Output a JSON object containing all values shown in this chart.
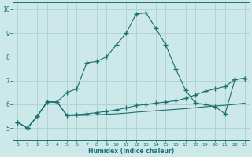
{
  "title": "",
  "xlabel": "Humidex (Indice chaleur)",
  "bg_color": "#cce8e8",
  "grid_color": "#b0d4d4",
  "line_color": "#1a7070",
  "xlim": [
    -0.5,
    23.5
  ],
  "ylim": [
    4.5,
    10.3
  ],
  "xticks": [
    0,
    1,
    2,
    3,
    4,
    5,
    6,
    7,
    8,
    9,
    10,
    11,
    12,
    13,
    14,
    15,
    16,
    17,
    18,
    19,
    20,
    21,
    22,
    23
  ],
  "yticks": [
    5,
    6,
    7,
    8,
    9,
    10
  ],
  "line1_x": [
    0,
    1,
    2,
    3,
    4,
    5,
    6,
    7,
    8,
    9,
    10,
    11,
    12,
    13,
    14,
    15,
    16,
    17,
    18,
    19,
    20,
    21,
    22,
    23
  ],
  "line1_y": [
    5.25,
    5.0,
    5.5,
    6.1,
    6.1,
    6.5,
    6.65,
    7.75,
    7.8,
    8.0,
    8.5,
    9.0,
    9.8,
    9.85,
    9.2,
    8.5,
    7.5,
    6.6,
    6.05,
    6.0,
    5.9,
    5.6,
    7.05,
    7.1
  ],
  "line2_x": [
    0,
    1,
    2,
    3,
    4,
    5,
    6,
    7,
    8,
    9,
    10,
    11,
    12,
    13,
    14,
    15,
    16,
    17,
    18,
    19,
    20,
    21,
    22,
    23
  ],
  "line2_y": [
    5.25,
    5.0,
    5.5,
    6.1,
    6.1,
    5.55,
    5.57,
    5.6,
    5.65,
    5.7,
    5.77,
    5.85,
    5.95,
    6.0,
    6.05,
    6.1,
    6.15,
    6.25,
    6.4,
    6.55,
    6.65,
    6.75,
    7.05,
    7.1
  ],
  "line3_x": [
    0,
    1,
    2,
    3,
    4,
    5,
    6,
    7,
    8,
    9,
    10,
    11,
    12,
    13,
    14,
    15,
    16,
    17,
    18,
    19,
    20,
    21,
    22,
    23
  ],
  "line3_y": [
    5.25,
    5.0,
    5.5,
    6.1,
    6.1,
    5.52,
    5.53,
    5.54,
    5.56,
    5.58,
    5.6,
    5.63,
    5.67,
    5.7,
    5.73,
    5.76,
    5.79,
    5.82,
    5.86,
    5.9,
    5.93,
    5.96,
    6.0,
    6.05
  ]
}
